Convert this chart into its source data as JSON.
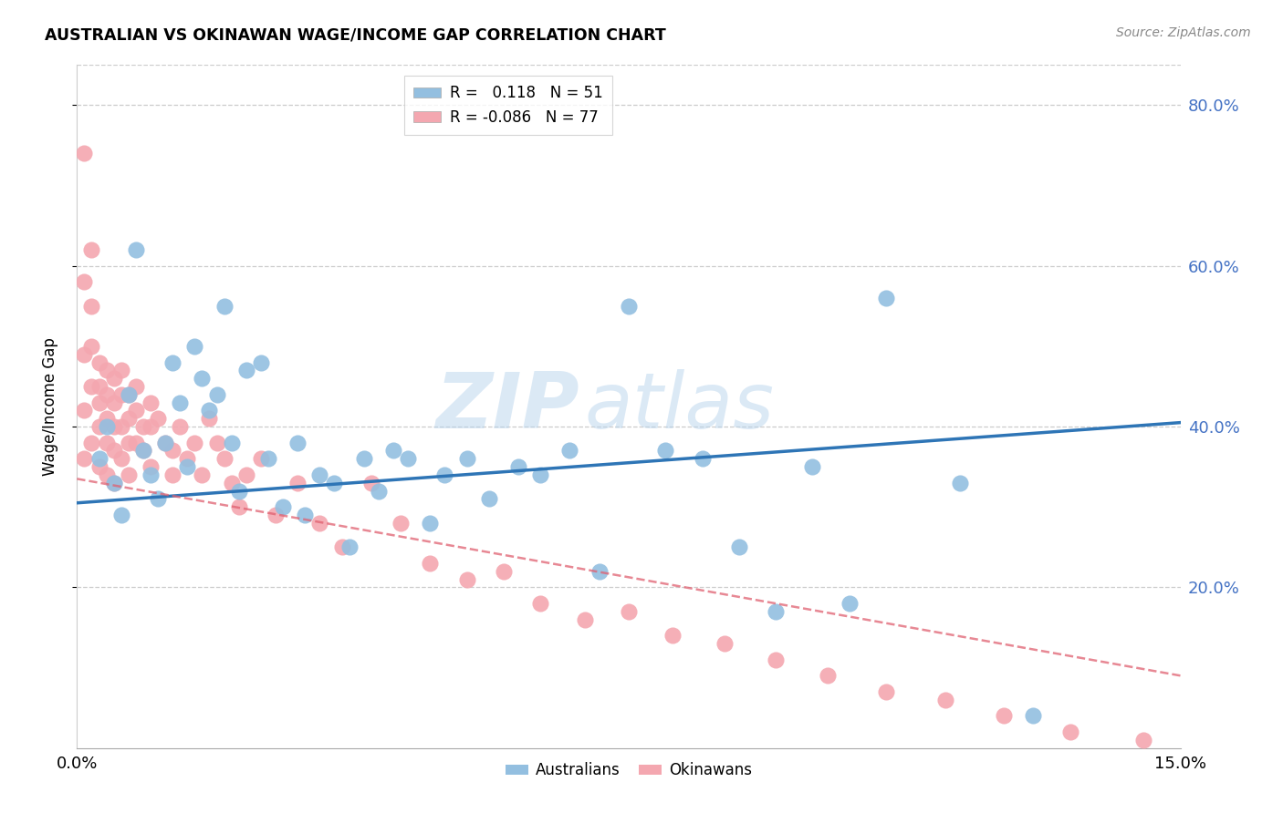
{
  "title": "AUSTRALIAN VS OKINAWAN WAGE/INCOME GAP CORRELATION CHART",
  "source": "Source: ZipAtlas.com",
  "ylabel": "Wage/Income Gap",
  "xlim": [
    0.0,
    0.15
  ],
  "ylim": [
    0.0,
    0.85
  ],
  "yticks": [
    0.2,
    0.4,
    0.6,
    0.8
  ],
  "ytick_labels": [
    "20.0%",
    "40.0%",
    "60.0%",
    "80.0%"
  ],
  "ytick_color": "#4472c4",
  "blue_color": "#93bfe0",
  "pink_color": "#f4a7b0",
  "trendline_blue_color": "#2e75b6",
  "trendline_pink_color": "#e06070",
  "watermark_text": "ZIPatlas",
  "blue_trend_x0": 0.0,
  "blue_trend_y0": 0.305,
  "blue_trend_x1": 0.15,
  "blue_trend_y1": 0.405,
  "pink_trend_x0": 0.0,
  "pink_trend_y0": 0.335,
  "pink_trend_x1": 0.15,
  "pink_trend_y1": 0.09,
  "blue_scatter_x": [
    0.003,
    0.004,
    0.005,
    0.006,
    0.007,
    0.008,
    0.009,
    0.01,
    0.011,
    0.012,
    0.013,
    0.014,
    0.015,
    0.016,
    0.017,
    0.018,
    0.019,
    0.02,
    0.021,
    0.022,
    0.023,
    0.025,
    0.026,
    0.028,
    0.03,
    0.031,
    0.033,
    0.035,
    0.037,
    0.039,
    0.041,
    0.043,
    0.045,
    0.048,
    0.05,
    0.053,
    0.056,
    0.06,
    0.063,
    0.067,
    0.071,
    0.075,
    0.08,
    0.085,
    0.09,
    0.095,
    0.1,
    0.105,
    0.11,
    0.12,
    0.13
  ],
  "blue_scatter_y": [
    0.36,
    0.4,
    0.33,
    0.29,
    0.44,
    0.62,
    0.37,
    0.34,
    0.31,
    0.38,
    0.48,
    0.43,
    0.35,
    0.5,
    0.46,
    0.42,
    0.44,
    0.55,
    0.38,
    0.32,
    0.47,
    0.48,
    0.36,
    0.3,
    0.38,
    0.29,
    0.34,
    0.33,
    0.25,
    0.36,
    0.32,
    0.37,
    0.36,
    0.28,
    0.34,
    0.36,
    0.31,
    0.35,
    0.34,
    0.37,
    0.22,
    0.55,
    0.37,
    0.36,
    0.25,
    0.17,
    0.35,
    0.18,
    0.56,
    0.33,
    0.04
  ],
  "pink_scatter_x": [
    0.001,
    0.001,
    0.001,
    0.001,
    0.001,
    0.002,
    0.002,
    0.002,
    0.002,
    0.002,
    0.003,
    0.003,
    0.003,
    0.003,
    0.003,
    0.004,
    0.004,
    0.004,
    0.004,
    0.004,
    0.005,
    0.005,
    0.005,
    0.005,
    0.005,
    0.006,
    0.006,
    0.006,
    0.006,
    0.007,
    0.007,
    0.007,
    0.007,
    0.008,
    0.008,
    0.008,
    0.009,
    0.009,
    0.01,
    0.01,
    0.01,
    0.011,
    0.012,
    0.013,
    0.013,
    0.014,
    0.015,
    0.016,
    0.017,
    0.018,
    0.019,
    0.02,
    0.021,
    0.022,
    0.023,
    0.025,
    0.027,
    0.03,
    0.033,
    0.036,
    0.04,
    0.044,
    0.048,
    0.053,
    0.058,
    0.063,
    0.069,
    0.075,
    0.081,
    0.088,
    0.095,
    0.102,
    0.11,
    0.118,
    0.126,
    0.135,
    0.145
  ],
  "pink_scatter_y": [
    0.74,
    0.58,
    0.49,
    0.42,
    0.36,
    0.62,
    0.55,
    0.5,
    0.45,
    0.38,
    0.48,
    0.45,
    0.43,
    0.4,
    0.35,
    0.47,
    0.44,
    0.41,
    0.38,
    0.34,
    0.46,
    0.43,
    0.4,
    0.37,
    0.33,
    0.47,
    0.44,
    0.4,
    0.36,
    0.44,
    0.41,
    0.38,
    0.34,
    0.45,
    0.42,
    0.38,
    0.4,
    0.37,
    0.43,
    0.4,
    0.35,
    0.41,
    0.38,
    0.37,
    0.34,
    0.4,
    0.36,
    0.38,
    0.34,
    0.41,
    0.38,
    0.36,
    0.33,
    0.3,
    0.34,
    0.36,
    0.29,
    0.33,
    0.28,
    0.25,
    0.33,
    0.28,
    0.23,
    0.21,
    0.22,
    0.18,
    0.16,
    0.17,
    0.14,
    0.13,
    0.11,
    0.09,
    0.07,
    0.06,
    0.04,
    0.02,
    0.01
  ],
  "legend_items": [
    {
      "color": "#93bfe0",
      "label_r": "R = ",
      "r_val": "  0.118",
      "label_n": "N = ",
      "n_val": "51"
    },
    {
      "color": "#f4a7b0",
      "label_r": "R = ",
      "r_val": "-0.086",
      "label_n": "N = ",
      "n_val": "77"
    }
  ]
}
